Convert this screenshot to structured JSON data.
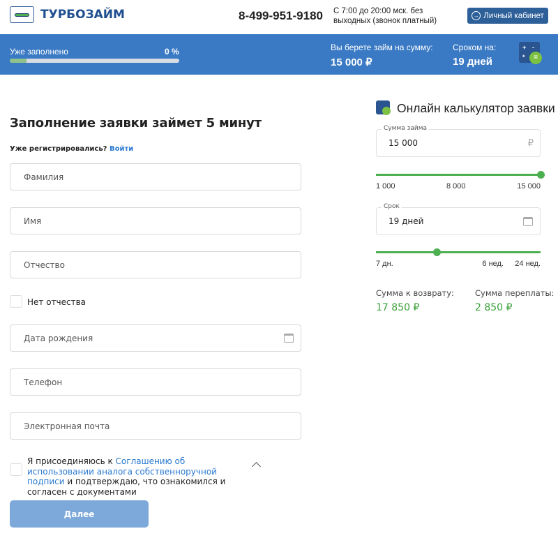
{
  "header": {
    "logo": "ТУРБОЗАЙМ",
    "phone": "8-499-951-9180",
    "hours": "С 7:00 до 20:00 мск. без выходных (звонок платный)",
    "cabinet_label": "Личный кабинет"
  },
  "band": {
    "filled_label": "Уже заполнено",
    "filled_percent": "0 %",
    "progress_fraction": 0,
    "sum_label": "Вы берете займ на сумму:",
    "sum_value": "15 000 ₽",
    "term_label": "Сроком на:",
    "term_value": "19 дней",
    "calc_icon": "calculator-icon"
  },
  "form": {
    "title": "Заполнение заявки займет 5 минут",
    "registered": "Уже регистрировались?",
    "login": "Войти",
    "fields": {
      "surname": "Фамилия",
      "name": "Имя",
      "patronymic": "Отчество",
      "birthdate": "Дата рождения",
      "phone": "Телефон",
      "email": "Электронная почта"
    },
    "no_patronymic": "Нет отчества",
    "agree_pre": "Я присоединяюсь к ",
    "agree_link": "Соглашению об использовании аналога собственноручной подписи",
    "agree_post": " и подтверждаю, что ознакомился и согласен с документами",
    "next": "Далее"
  },
  "calculator": {
    "title": "Онлайн калькулятор заявки",
    "amount_label": "Сумма займа",
    "amount_value": "15 000",
    "currency": "₽",
    "amount_ticks": [
      "1 000",
      "8 000",
      "15 000"
    ],
    "amount_fraction": 1,
    "term_label": "Срок",
    "term_value": "19 дней",
    "term_ticks": [
      "7 дн.",
      "6 нед.",
      "24 нед."
    ],
    "term_fraction": 0.37,
    "repay_label": "Сумма к возврату:",
    "repay_value": "17 850 ₽",
    "overpay_label": "Сумма переплаты:",
    "overpay_value": "2 850 ₽"
  },
  "colors": {
    "brand": "#3a7ac4",
    "accent_green": "#4caf50",
    "link": "#2a7ad0"
  }
}
